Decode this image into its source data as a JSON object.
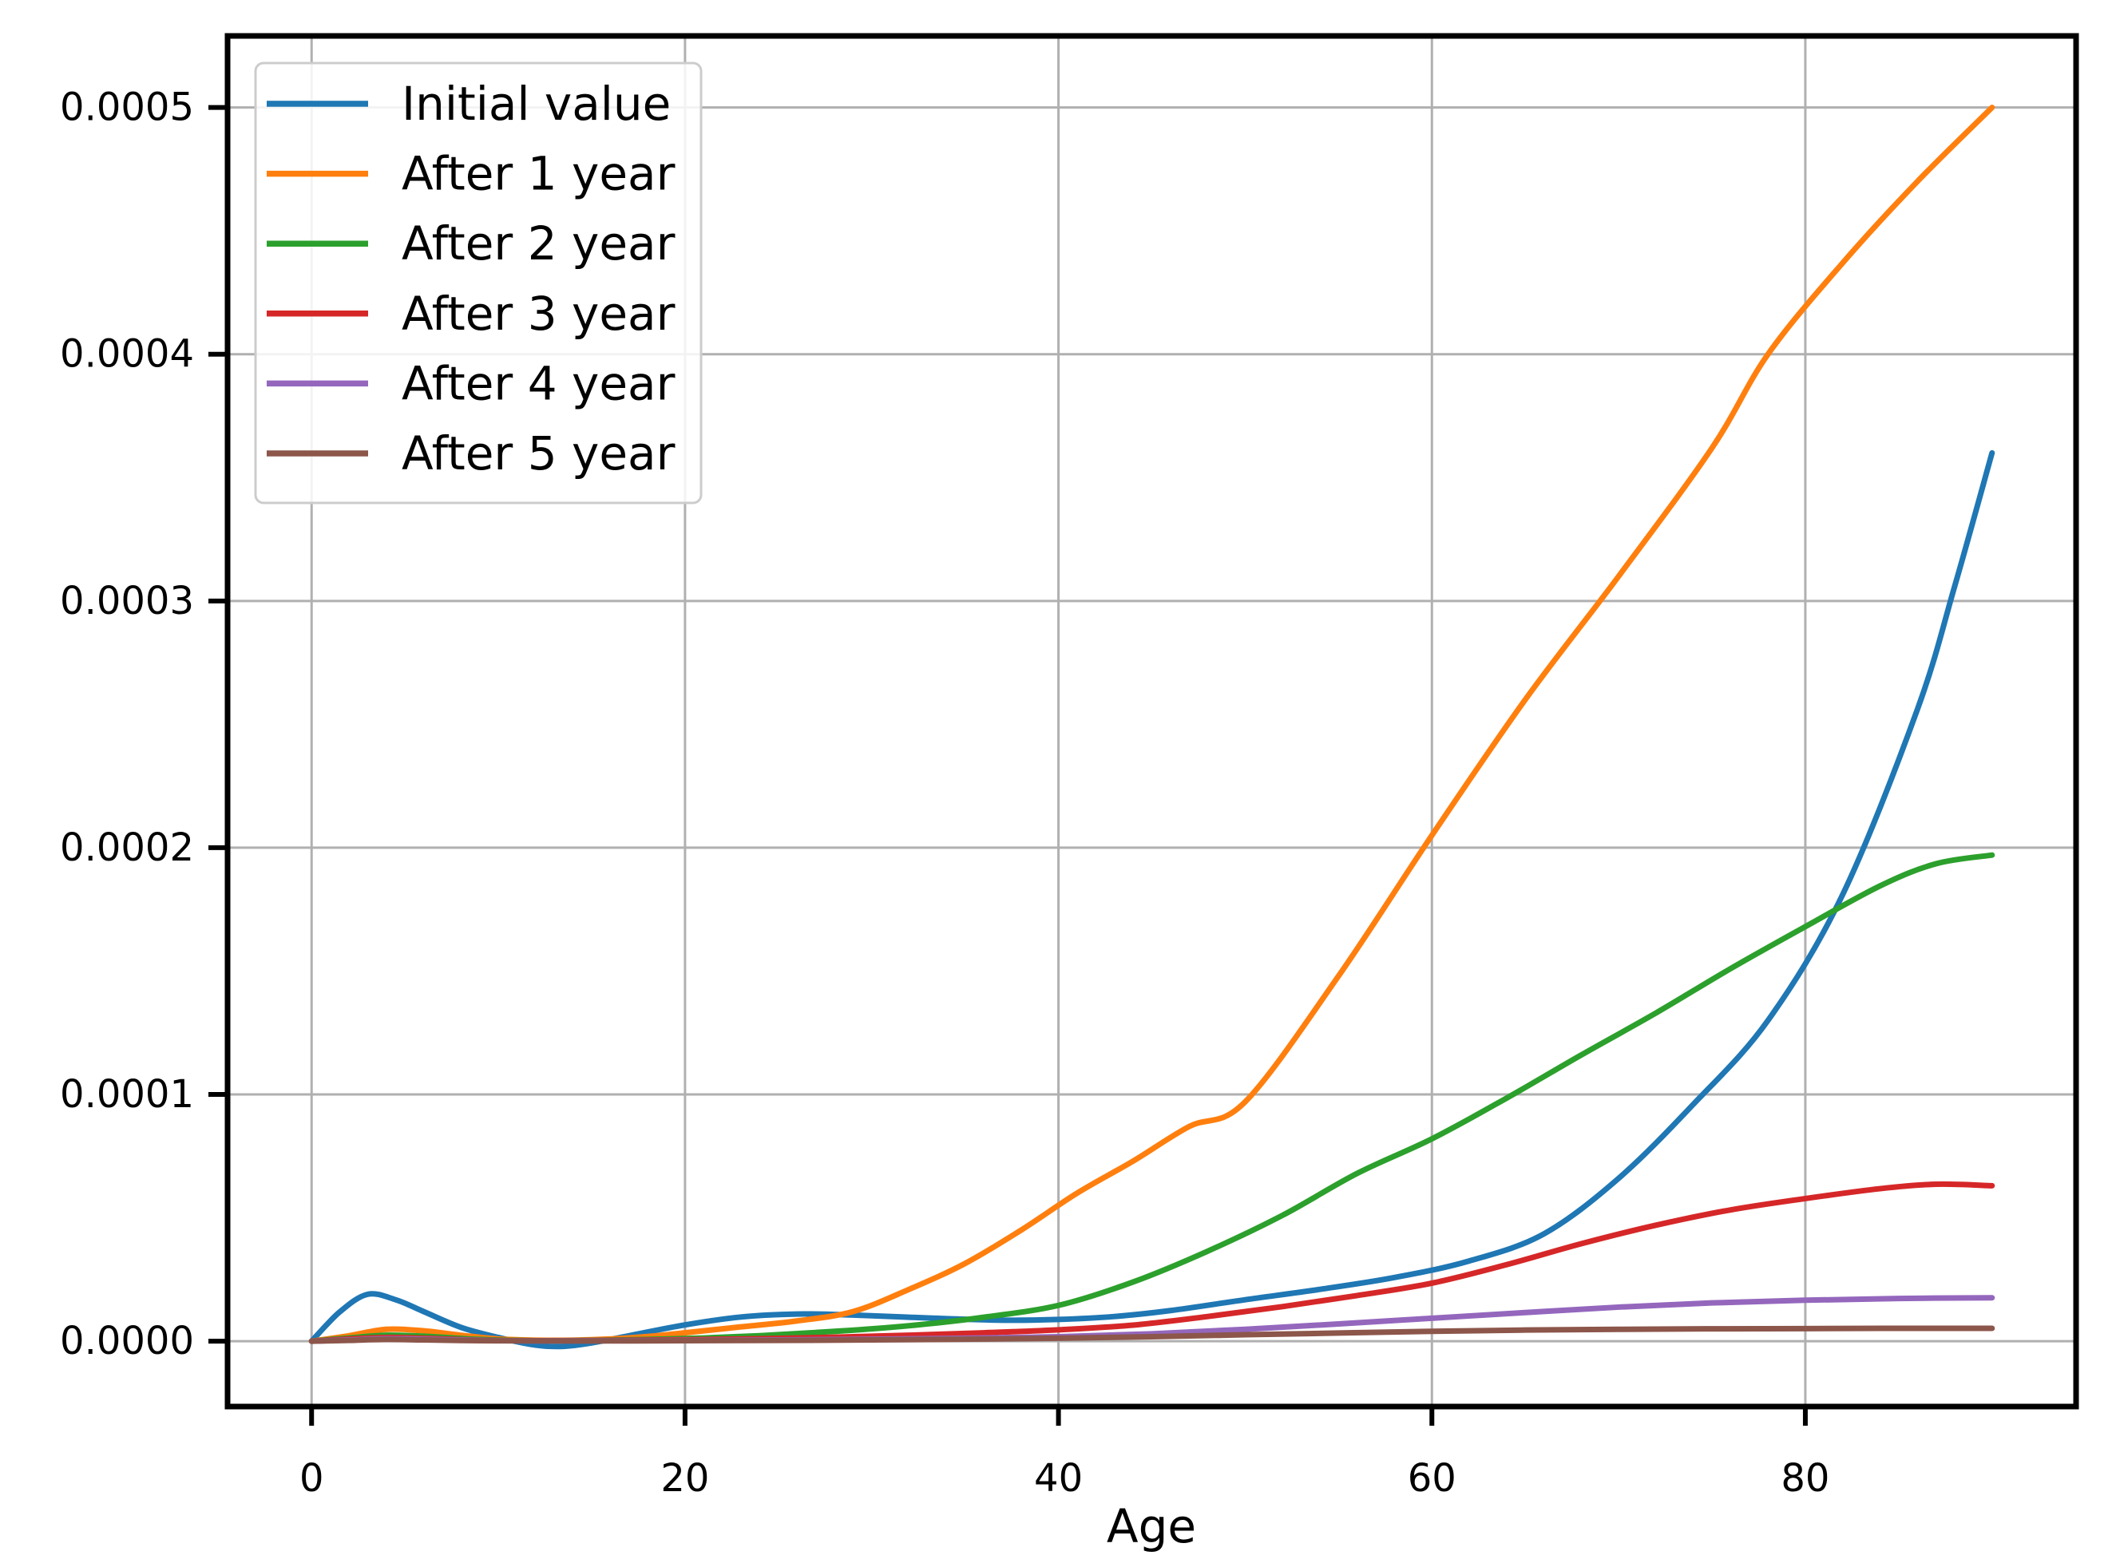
{
  "figure": {
    "background": "#ffffff",
    "grid_color": "#b0b0b0",
    "spine_color": "#000000",
    "legend_border_color": "#cccccc",
    "legend_background": "rgba(255,255,255,0.85)"
  },
  "chart_data": {
    "type": "line",
    "title": "",
    "xlabel": "Age",
    "ylabel": "",
    "grid": true,
    "legend_position": "upper left",
    "xlim": [
      -4.5,
      94.5
    ],
    "ylim": [
      -2.65e-05,
      0.000529
    ],
    "x_ticks": [
      0,
      20,
      40,
      60,
      80
    ],
    "x_tick_labels": [
      "0",
      "20",
      "40",
      "60",
      "80"
    ],
    "y_ticks": [
      0,
      0.0001,
      0.0002,
      0.0003,
      0.0004,
      0.0005
    ],
    "y_tick_labels": [
      "0.0000",
      "0.0001",
      "0.0002",
      "0.0003",
      "0.0004",
      "0.0005"
    ],
    "series": [
      {
        "name": "Initial value",
        "color": "#1f77b4",
        "points": [
          [
            0,
            0
          ],
          [
            1.5,
            1.18e-05
          ],
          [
            3,
            1.9e-05
          ],
          [
            4.5,
            1.68e-05
          ],
          [
            6,
            1.2e-05
          ],
          [
            8,
            5.6e-06
          ],
          [
            10,
            1.5e-06
          ],
          [
            12,
            -1.6e-06
          ],
          [
            13.5,
            -2.1e-06
          ],
          [
            15,
            -7e-07
          ],
          [
            17,
            2.2e-06
          ],
          [
            20,
            6.6e-06
          ],
          [
            23,
            9.8e-06
          ],
          [
            26,
            1.1e-05
          ],
          [
            29,
            1.06e-05
          ],
          [
            33,
            9.4e-06
          ],
          [
            37,
            8.5e-06
          ],
          [
            40,
            8.8e-06
          ],
          [
            43,
            1e-05
          ],
          [
            46,
            1.24e-05
          ],
          [
            50,
            1.68e-05
          ],
          [
            54,
            2.1e-05
          ],
          [
            58,
            2.58e-05
          ],
          [
            62,
            3.25e-05
          ],
          [
            66,
            4.35e-05
          ],
          [
            70,
            6.6e-05
          ],
          [
            74,
            9.6e-05
          ],
          [
            78,
            0.00013
          ],
          [
            82,
            0.000181
          ],
          [
            86,
            0.000256
          ],
          [
            88,
            0.000306
          ],
          [
            90,
            0.00036
          ]
        ]
      },
      {
        "name": "After 1 year",
        "color": "#ff7f0e",
        "points": [
          [
            0,
            0
          ],
          [
            2,
            2.2e-06
          ],
          [
            4,
            4.8e-06
          ],
          [
            6,
            4.2e-06
          ],
          [
            8,
            2.4e-06
          ],
          [
            10,
            9e-07
          ],
          [
            12,
            4e-07
          ],
          [
            14,
            4e-07
          ],
          [
            16,
            9e-07
          ],
          [
            18,
            1.9e-06
          ],
          [
            20,
            3.4e-06
          ],
          [
            23,
            5.8e-06
          ],
          [
            26,
            8.2e-06
          ],
          [
            29,
            1.2e-05
          ],
          [
            32,
            2.1e-05
          ],
          [
            35,
            3.15e-05
          ],
          [
            38,
            4.5e-05
          ],
          [
            41,
            6e-05
          ],
          [
            44,
            7.3e-05
          ],
          [
            47,
            8.7e-05
          ],
          [
            50,
            9.7e-05
          ],
          [
            55,
            0.000148
          ],
          [
            60,
            0.000205
          ],
          [
            65,
            0.00026
          ],
          [
            70,
            0.00031
          ],
          [
            75,
            0.000362
          ],
          [
            78,
            0.0004
          ],
          [
            82,
            0.000437
          ],
          [
            86,
            0.00047
          ],
          [
            90,
            0.0005
          ]
        ]
      },
      {
        "name": "After 2 year",
        "color": "#2ca02c",
        "points": [
          [
            0,
            0
          ],
          [
            2,
            1.3e-06
          ],
          [
            4,
            2.4e-06
          ],
          [
            6,
            2e-06
          ],
          [
            9,
            7e-07
          ],
          [
            12,
            2e-07
          ],
          [
            15,
            3e-07
          ],
          [
            18,
            7e-07
          ],
          [
            21,
            1.3e-06
          ],
          [
            24,
            2.2e-06
          ],
          [
            27,
            3.5e-06
          ],
          [
            30,
            5e-06
          ],
          [
            33,
            7e-06
          ],
          [
            36,
            9.7e-06
          ],
          [
            40,
            1.45e-05
          ],
          [
            44,
            2.4e-05
          ],
          [
            48,
            3.65e-05
          ],
          [
            52,
            5.1e-05
          ],
          [
            56,
            6.8e-05
          ],
          [
            60,
            8.2e-05
          ],
          [
            64,
            9.85e-05
          ],
          [
            68,
            0.000116
          ],
          [
            72,
            0.000133
          ],
          [
            76,
            0.000151
          ],
          [
            80,
            0.000168
          ],
          [
            84,
            0.0001845
          ],
          [
            87,
            0.0001935
          ],
          [
            90,
            0.000197
          ]
        ]
      },
      {
        "name": "After 3 year",
        "color": "#d62728",
        "points": [
          [
            0,
            0
          ],
          [
            2,
            9e-07
          ],
          [
            4,
            1.5e-06
          ],
          [
            6,
            1.2e-06
          ],
          [
            9,
            4e-07
          ],
          [
            12,
            2e-07
          ],
          [
            16,
            3e-07
          ],
          [
            20,
            6e-07
          ],
          [
            24,
            1e-06
          ],
          [
            28,
            1.6e-06
          ],
          [
            32,
            2.4e-06
          ],
          [
            36,
            3.4e-06
          ],
          [
            40,
            4.6e-06
          ],
          [
            44,
            6.5e-06
          ],
          [
            48,
            1e-05
          ],
          [
            52,
            1.4e-05
          ],
          [
            56,
            1.85e-05
          ],
          [
            60,
            2.35e-05
          ],
          [
            64,
            3.1e-05
          ],
          [
            68,
            3.95e-05
          ],
          [
            72,
            4.7e-05
          ],
          [
            76,
            5.32e-05
          ],
          [
            80,
            5.78e-05
          ],
          [
            84,
            6.18e-05
          ],
          [
            87,
            6.36e-05
          ],
          [
            90,
            6.3e-05
          ]
        ]
      },
      {
        "name": "After 4 year",
        "color": "#9467bd",
        "points": [
          [
            0,
            0
          ],
          [
            2,
            5e-07
          ],
          [
            4,
            1e-06
          ],
          [
            6,
            8e-07
          ],
          [
            9,
            3e-07
          ],
          [
            12,
            1e-07
          ],
          [
            16,
            2e-07
          ],
          [
            20,
            3e-07
          ],
          [
            25,
            5e-07
          ],
          [
            30,
            8e-07
          ],
          [
            35,
            1.2e-06
          ],
          [
            40,
            1.8e-06
          ],
          [
            45,
            3e-06
          ],
          [
            50,
            4.8e-06
          ],
          [
            55,
            7e-06
          ],
          [
            60,
            9.3e-06
          ],
          [
            65,
            1.16e-05
          ],
          [
            70,
            1.38e-05
          ],
          [
            75,
            1.55e-05
          ],
          [
            80,
            1.66e-05
          ],
          [
            85,
            1.73e-05
          ],
          [
            90,
            1.76e-05
          ]
        ]
      },
      {
        "name": "After 5 year",
        "color": "#8c564b",
        "points": [
          [
            0,
            0
          ],
          [
            2,
            3e-07
          ],
          [
            4,
            7e-07
          ],
          [
            6,
            5e-07
          ],
          [
            9,
            2e-07
          ],
          [
            12,
            1e-07
          ],
          [
            16,
            1e-07
          ],
          [
            20,
            2e-07
          ],
          [
            25,
            3e-07
          ],
          [
            30,
            5e-07
          ],
          [
            35,
            8e-07
          ],
          [
            40,
            1.2e-06
          ],
          [
            45,
            1.8e-06
          ],
          [
            50,
            2.6e-06
          ],
          [
            55,
            3.3e-06
          ],
          [
            60,
            4e-06
          ],
          [
            65,
            4.5e-06
          ],
          [
            70,
            4.8e-06
          ],
          [
            75,
            5e-06
          ],
          [
            80,
            5.1e-06
          ],
          [
            85,
            5.2e-06
          ],
          [
            90,
            5.2e-06
          ]
        ]
      }
    ]
  }
}
